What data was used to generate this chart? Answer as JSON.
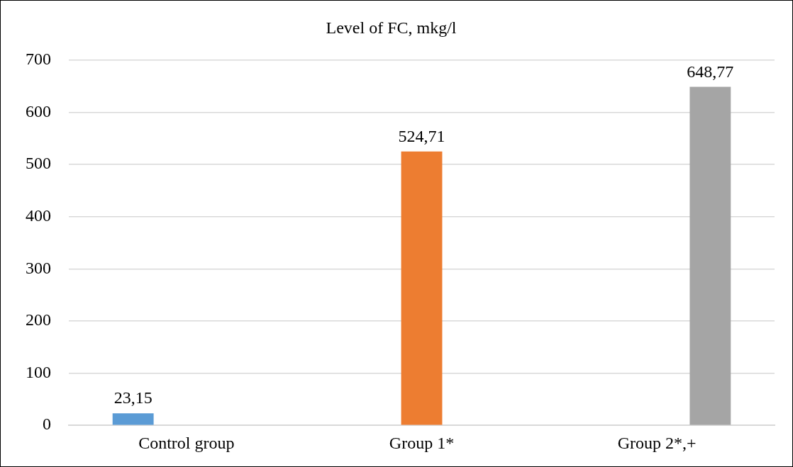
{
  "chart_data": {
    "type": "bar",
    "title": "Level of FC, mkg/l",
    "categories": [
      "Control group",
      "Group 1*",
      "Group 2*,+"
    ],
    "series": [
      {
        "color": "#5b9bd5",
        "values": [
          23.15,
          null,
          null
        ],
        "value_labels": [
          "23,15",
          null,
          null
        ]
      },
      {
        "color": "#ed7d31",
        "values": [
          null,
          524.71,
          null
        ],
        "value_labels": [
          null,
          "524,71",
          null
        ]
      },
      {
        "color": "#a5a5a5",
        "values": [
          null,
          null,
          648.77
        ],
        "value_labels": [
          null,
          null,
          "648,77"
        ]
      }
    ],
    "ylim": [
      0,
      700
    ],
    "yticks": [
      0,
      100,
      200,
      300,
      400,
      500,
      600,
      700
    ],
    "grid": "y",
    "legend": false
  }
}
